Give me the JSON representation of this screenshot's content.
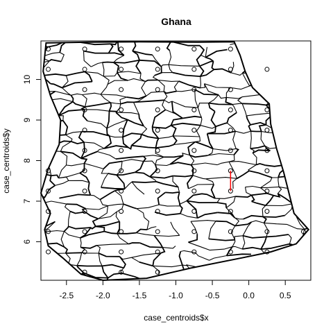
{
  "chart_data": {
    "type": "scatter",
    "title": "Ghana",
    "xlabel": "case_centroids$x",
    "ylabel": "case_centroids$y",
    "xlim": [
      -2.85,
      0.85
    ],
    "ylim": [
      5.05,
      10.95
    ],
    "x_ticks": [
      -2.5,
      -2.0,
      -1.5,
      -1.0,
      -0.5,
      0.0,
      0.5
    ],
    "x_tick_labels": [
      "-2.5",
      "-2.0",
      "-1.5",
      "-1.0",
      "-0.5",
      "0.0",
      "0.5"
    ],
    "y_ticks": [
      6,
      7,
      8,
      9,
      10
    ],
    "y_tick_labels": [
      "6",
      "7",
      "8",
      "9",
      "10"
    ],
    "grid": false,
    "legend": "none",
    "point_color": "#000000",
    "boundary_color": "#000000",
    "link_color": "#ff0000",
    "centroid_rows": [
      {
        "y": 10.75,
        "x": [
          -2.75,
          -2.25,
          -1.75,
          -1.25,
          -0.75,
          -0.25
        ]
      },
      {
        "y": 10.25,
        "x": [
          -2.75,
          -2.25,
          -1.75,
          -1.25,
          -0.75,
          -0.25,
          0.25
        ]
      },
      {
        "y": 9.75,
        "x": [
          -2.25,
          -1.75,
          -1.25,
          -0.75,
          -0.25
        ]
      },
      {
        "y": 9.25,
        "x": [
          -2.25,
          -1.75,
          -1.25,
          -0.75,
          -0.25,
          0.25
        ]
      },
      {
        "y": 8.75,
        "x": [
          -2.25,
          -1.75,
          -1.25,
          -0.75,
          -0.25,
          0.25
        ]
      },
      {
        "y": 8.25,
        "x": [
          -2.25,
          -1.75,
          -1.25,
          -0.75,
          -0.25,
          0.25
        ]
      },
      {
        "y": 7.75,
        "x": [
          -2.75,
          -2.25,
          -1.75,
          -1.25,
          -0.75,
          -0.25,
          0.25
        ]
      },
      {
        "y": 7.25,
        "x": [
          -2.75,
          -2.25,
          -1.75,
          -1.25,
          -0.75,
          -0.25,
          0.25
        ]
      },
      {
        "y": 6.75,
        "x": [
          -2.75,
          -2.25,
          -1.75,
          -1.25,
          -0.75,
          -0.25,
          0.25
        ]
      },
      {
        "y": 6.25,
        "x": [
          -2.75,
          -2.25,
          -1.75,
          -1.25,
          -0.75,
          -0.25,
          0.25,
          0.75
        ]
      },
      {
        "y": 5.75,
        "x": [
          -2.75,
          -2.25,
          -1.75,
          -1.25,
          -0.75,
          -0.25,
          0.25
        ]
      },
      {
        "y": 5.25,
        "x": [
          -2.25,
          -1.75,
          -1.25
        ]
      }
    ],
    "link_segment": {
      "x": [
        -0.25,
        -0.25
      ],
      "y": [
        7.25,
        7.75
      ]
    }
  }
}
